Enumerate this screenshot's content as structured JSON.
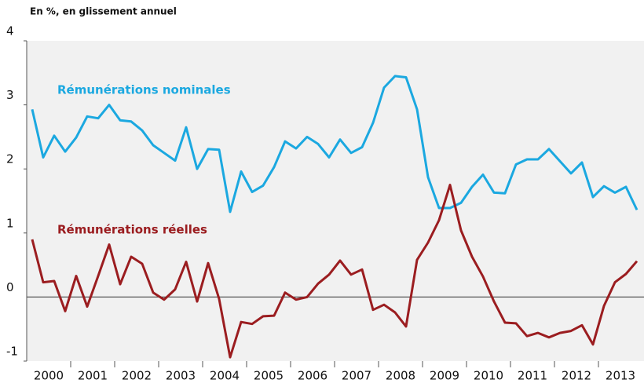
{
  "chart_data": {
    "type": "line",
    "subtitle": "En %, en glissement annuel",
    "x": [
      2000.125,
      2000.375,
      2000.625,
      2000.875,
      2001.125,
      2001.375,
      2001.625,
      2001.875,
      2002.125,
      2002.375,
      2002.625,
      2002.875,
      2003.125,
      2003.375,
      2003.625,
      2003.875,
      2004.125,
      2004.375,
      2004.625,
      2004.875,
      2005.125,
      2005.375,
      2005.625,
      2005.875,
      2006.125,
      2006.375,
      2006.625,
      2006.875,
      2007.125,
      2007.375,
      2007.625,
      2007.875,
      2008.125,
      2008.375,
      2008.625,
      2008.875,
      2009.125,
      2009.375,
      2009.625,
      2009.875,
      2010.125,
      2010.375,
      2010.625,
      2010.875,
      2011.125,
      2011.375,
      2011.625,
      2011.875,
      2012.125,
      2012.375,
      2012.625,
      2012.875,
      2013.125,
      2013.375,
      2013.625,
      2013.875
    ],
    "series": [
      {
        "name": "Rémunérations nominales",
        "color": "#1ba8e0",
        "values": [
          2.93,
          2.18,
          2.52,
          2.27,
          2.49,
          2.82,
          2.79,
          3.0,
          2.76,
          2.74,
          2.6,
          2.37,
          2.25,
          2.13,
          2.65,
          2.0,
          2.31,
          2.3,
          1.33,
          1.96,
          1.64,
          1.74,
          2.03,
          2.43,
          2.32,
          2.5,
          2.39,
          2.18,
          2.46,
          2.25,
          2.34,
          2.72,
          3.27,
          3.45,
          3.43,
          2.93,
          1.87,
          1.39,
          1.39,
          1.47,
          1.72,
          1.91,
          1.63,
          1.62,
          2.07,
          2.15,
          2.15,
          2.31,
          2.12,
          1.93,
          2.1,
          1.56,
          1.73,
          1.63,
          1.72,
          1.36
        ]
      },
      {
        "name": "Rémunérations réelles",
        "color": "#9b1d20",
        "values": [
          0.9,
          0.23,
          0.25,
          -0.22,
          0.33,
          -0.15,
          0.33,
          0.82,
          0.2,
          0.63,
          0.52,
          0.07,
          -0.04,
          0.12,
          0.55,
          -0.07,
          0.53,
          -0.03,
          -0.94,
          -0.39,
          -0.42,
          -0.3,
          -0.29,
          0.07,
          -0.04,
          0.0,
          0.21,
          0.35,
          0.57,
          0.35,
          0.43,
          -0.2,
          -0.12,
          -0.24,
          -0.46,
          0.58,
          0.85,
          1.2,
          1.75,
          1.04,
          0.63,
          0.32,
          -0.07,
          -0.4,
          -0.41,
          -0.61,
          -0.56,
          -0.63,
          -0.56,
          -0.53,
          -0.44,
          -0.74,
          -0.14,
          0.23,
          0.36,
          0.56
        ]
      }
    ],
    "xlim": [
      2000,
      2014
    ],
    "xticks": [
      {
        "value": 2000.5,
        "label": "2000"
      },
      {
        "value": 2001.5,
        "label": "2001"
      },
      {
        "value": 2002.5,
        "label": "2002"
      },
      {
        "value": 2003.5,
        "label": "2003"
      },
      {
        "value": 2004.5,
        "label": "2004"
      },
      {
        "value": 2005.5,
        "label": "2005"
      },
      {
        "value": 2006.5,
        "label": "2006"
      },
      {
        "value": 2007.5,
        "label": "2007"
      },
      {
        "value": 2008.5,
        "label": "2008"
      },
      {
        "value": 2009.5,
        "label": "2009"
      },
      {
        "value": 2010.5,
        "label": "2010"
      },
      {
        "value": 2011.5,
        "label": "2011"
      },
      {
        "value": 2012.5,
        "label": "2012"
      },
      {
        "value": 2013.5,
        "label": "2013"
      }
    ],
    "ylim": [
      -1,
      4
    ],
    "yticks": [
      -1,
      0,
      1,
      2,
      3,
      4
    ],
    "grid": false
  }
}
